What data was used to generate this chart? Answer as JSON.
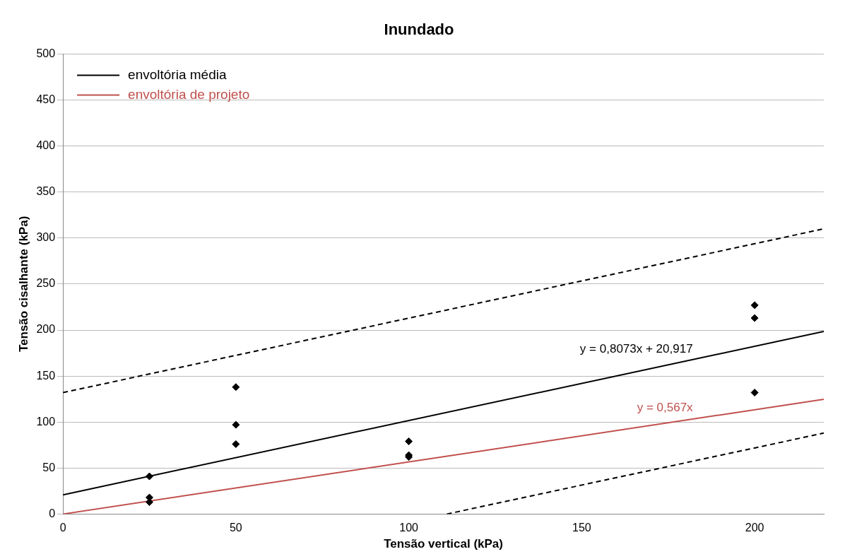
{
  "chart_data": {
    "type": "scatter",
    "title": "Inundado",
    "xlabel": "Tensão vertical (kPa)",
    "ylabel": "Tensão cisalhante (kPa)",
    "xlim": [
      0,
      220
    ],
    "xticks": [
      0,
      50,
      100,
      150,
      200
    ],
    "ylim": [
      0,
      500
    ],
    "yticks": [
      0,
      50,
      100,
      150,
      200,
      250,
      300,
      350,
      400,
      450,
      500
    ],
    "grid": "y",
    "legend": "top left",
    "series": [
      {
        "marker": "diamond",
        "color": "#000000",
        "x": [
          25,
          25,
          25,
          50,
          50,
          50,
          100,
          100,
          100,
          200,
          200,
          200
        ],
        "values": [
          41,
          18,
          13,
          138,
          97,
          76,
          79,
          64,
          62,
          227,
          213,
          132
        ]
      },
      {
        "type": "line",
        "name": "envoltória média",
        "color": "#000000",
        "x": [
          0,
          220
        ],
        "values": [
          20.9,
          198.5
        ],
        "line_style": "solid",
        "marker": "none"
      },
      {
        "type": "line",
        "name": "envoltória de projeto",
        "color": "#c0504d",
        "x": [
          0,
          220
        ],
        "values": [
          0,
          124.7
        ],
        "line_style": "solid",
        "marker": "none"
      },
      {
        "type": "line",
        "color": "#000000",
        "x": [
          0,
          220
        ],
        "values": [
          132,
          310
        ],
        "line_style": "dashed",
        "marker": "none"
      },
      {
        "type": "line",
        "color": "#000000",
        "x": [
          111,
          220
        ],
        "values": [
          0,
          88
        ],
        "line_style": "dashed",
        "marker": "none"
      }
    ],
    "annotations": [
      "y = 0,8073x + 20,917",
      "y = 0,567x"
    ]
  }
}
